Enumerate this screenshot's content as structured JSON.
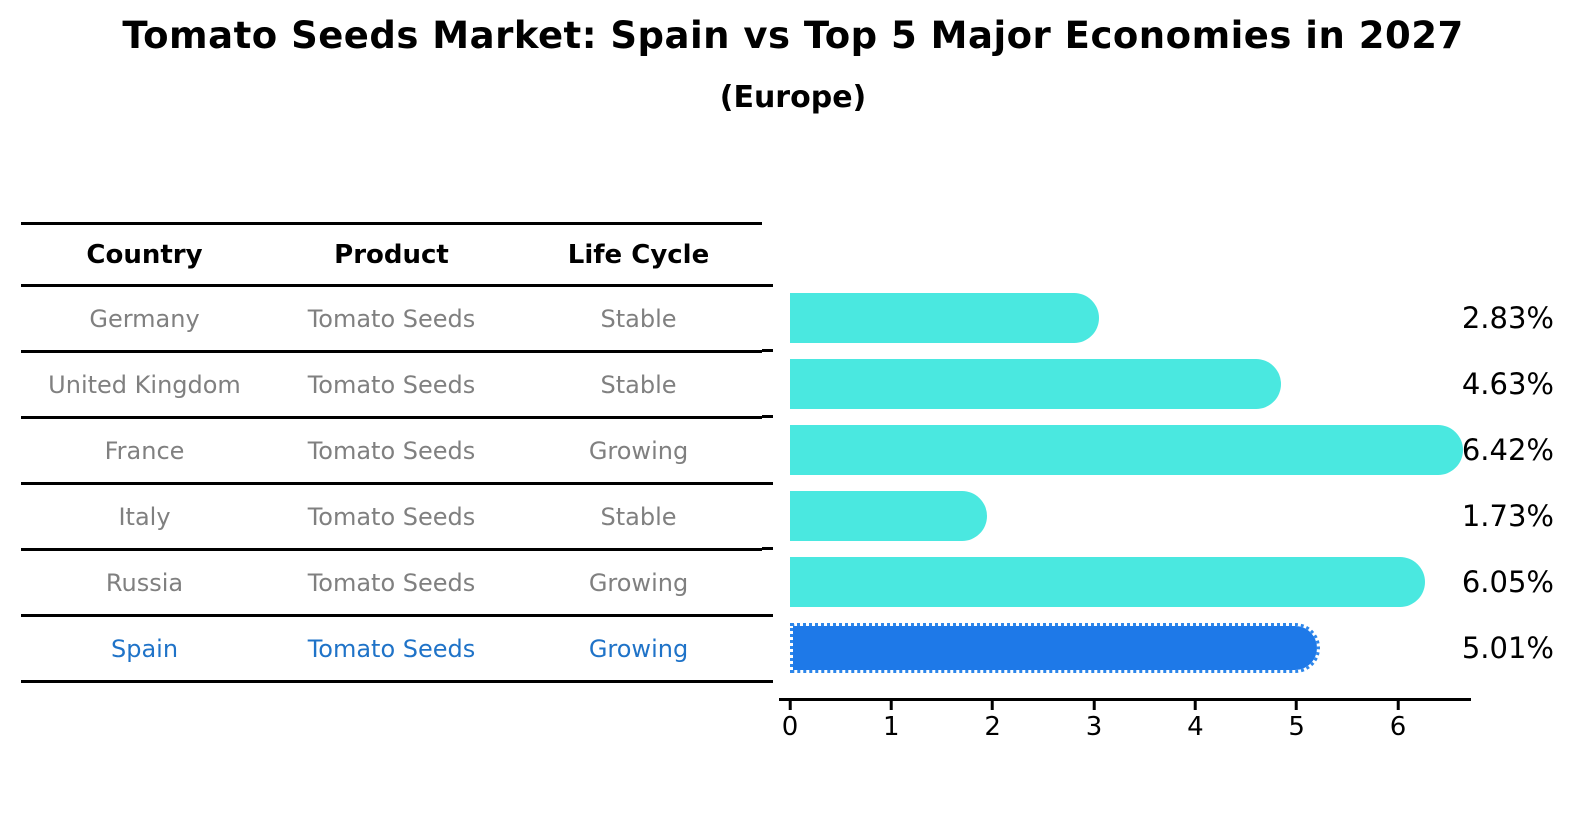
{
  "title": "Tomato Seeds Market: Spain vs Top 5 Major Economies in 2027",
  "subtitle": "(Europe)",
  "table": {
    "headers": [
      "Country",
      "Product",
      "Life Cycle"
    ],
    "rows": [
      {
        "country": "Germany",
        "product": "Tomato Seeds",
        "life_cycle": "Stable"
      },
      {
        "country": "United Kingdom",
        "product": "Tomato Seeds",
        "life_cycle": "Stable"
      },
      {
        "country": "France",
        "product": "Tomato Seeds",
        "life_cycle": "Growing"
      },
      {
        "country": "Italy",
        "product": "Tomato Seeds",
        "life_cycle": "Stable"
      },
      {
        "country": "Russia",
        "product": "Tomato Seeds",
        "life_cycle": "Growing"
      },
      {
        "country": "Spain",
        "product": "Tomato Seeds",
        "life_cycle": "Growing"
      }
    ]
  },
  "chart_data": {
    "type": "bar",
    "orientation": "horizontal",
    "title": "Tomato Seeds Market: Spain vs Top 5 Major Economies in 2027",
    "subtitle": "(Europe)",
    "categories": [
      "Germany",
      "United Kingdom",
      "France",
      "Italy",
      "Russia",
      "Spain"
    ],
    "values": [
      2.83,
      4.63,
      6.42,
      1.73,
      6.05,
      5.01
    ],
    "value_labels": [
      "2.83%",
      "4.63%",
      "6.42%",
      "1.73%",
      "6.05%",
      "5.01%"
    ],
    "xticks": [
      0,
      1,
      2,
      3,
      4,
      5,
      6
    ],
    "xlim": [
      0,
      6.71
    ],
    "grid": false,
    "legend": false,
    "highlight_index": 5,
    "bar_color": "#4ae8e0",
    "highlight_bar_color": "#1e79e8",
    "highlight_text_color": "#1f73c8",
    "text_color_muted": "#808080"
  }
}
